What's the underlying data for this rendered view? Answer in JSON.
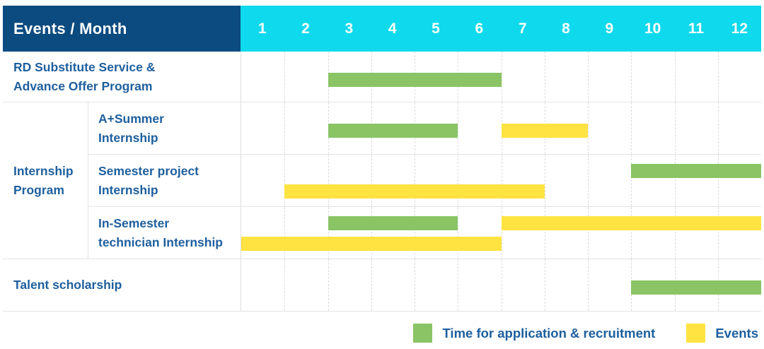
{
  "header": {
    "title": "Events / Month"
  },
  "colors": {
    "header_bg": "#0b4b80",
    "months_bg": "#0fd9ec",
    "label_text": "#1e5f9e",
    "recruitment": "#8ac465",
    "events": "#ffe341"
  },
  "legend": [
    {
      "series": "recruitment",
      "label": "Time for application & recruitment",
      "color": "#8ac465"
    },
    {
      "series": "events",
      "label": "Events",
      "color": "#ffe341"
    }
  ],
  "chart_data": {
    "type": "gantt",
    "title": "Events / Month",
    "x_axis": {
      "label": "Month",
      "ticks": [
        "1",
        "2",
        "3",
        "4",
        "5",
        "6",
        "7",
        "8",
        "9",
        "10",
        "11",
        "12"
      ],
      "range": [
        1,
        12
      ]
    },
    "series_legend": [
      {
        "name": "Time for application & recruitment",
        "color": "#8ac465"
      },
      {
        "name": "Events",
        "color": "#ffe341"
      }
    ],
    "rows": [
      {
        "label": "RD Substitute Service & Advance Offer Program",
        "line1": "RD Substitute Service &",
        "line2": "Advance Offer Program",
        "group": null,
        "bars": [
          {
            "series": "Time for application & recruitment",
            "start_month": 3,
            "end_month": 6,
            "lane": "mid"
          }
        ]
      },
      {
        "label": "A+Summer Internship",
        "line1": "A+Summer",
        "line2": "Internship",
        "group": "Internship Program",
        "bars": [
          {
            "series": "Time for application & recruitment",
            "start_month": 3,
            "end_month": 5,
            "lane": "mid"
          },
          {
            "series": "Events",
            "start_month": 7,
            "end_month": 8,
            "lane": "mid"
          }
        ]
      },
      {
        "label": "Semester project Internship",
        "line1": "Semester project",
        "line2": "Internship",
        "group": "Internship Program",
        "bars": [
          {
            "series": "Time for application & recruitment",
            "start_month": 10,
            "end_month": 12,
            "lane": "top"
          },
          {
            "series": "Events",
            "start_month": 2,
            "end_month": 7,
            "lane": "bottom"
          }
        ]
      },
      {
        "label": "In-Semester technician Internship",
        "line1": "In-Semester",
        "line2": "technician Internship",
        "group": "Internship Program",
        "bars": [
          {
            "series": "Time for application & recruitment",
            "start_month": 3,
            "end_month": 5,
            "lane": "top"
          },
          {
            "series": "Events",
            "start_month": 7,
            "end_month": 12,
            "lane": "top"
          },
          {
            "series": "Events",
            "start_month": 1,
            "end_month": 6,
            "lane": "bottom"
          }
        ]
      },
      {
        "label": "Talent scholarship",
        "line1": "Talent scholarship",
        "line2": "",
        "group": null,
        "bars": [
          {
            "series": "Time for application & recruitment",
            "start_month": 10,
            "end_month": 12,
            "lane": "mid"
          }
        ]
      }
    ],
    "group_label": {
      "line1": "Internship",
      "line2": "Program",
      "full": "Internship Program"
    }
  }
}
